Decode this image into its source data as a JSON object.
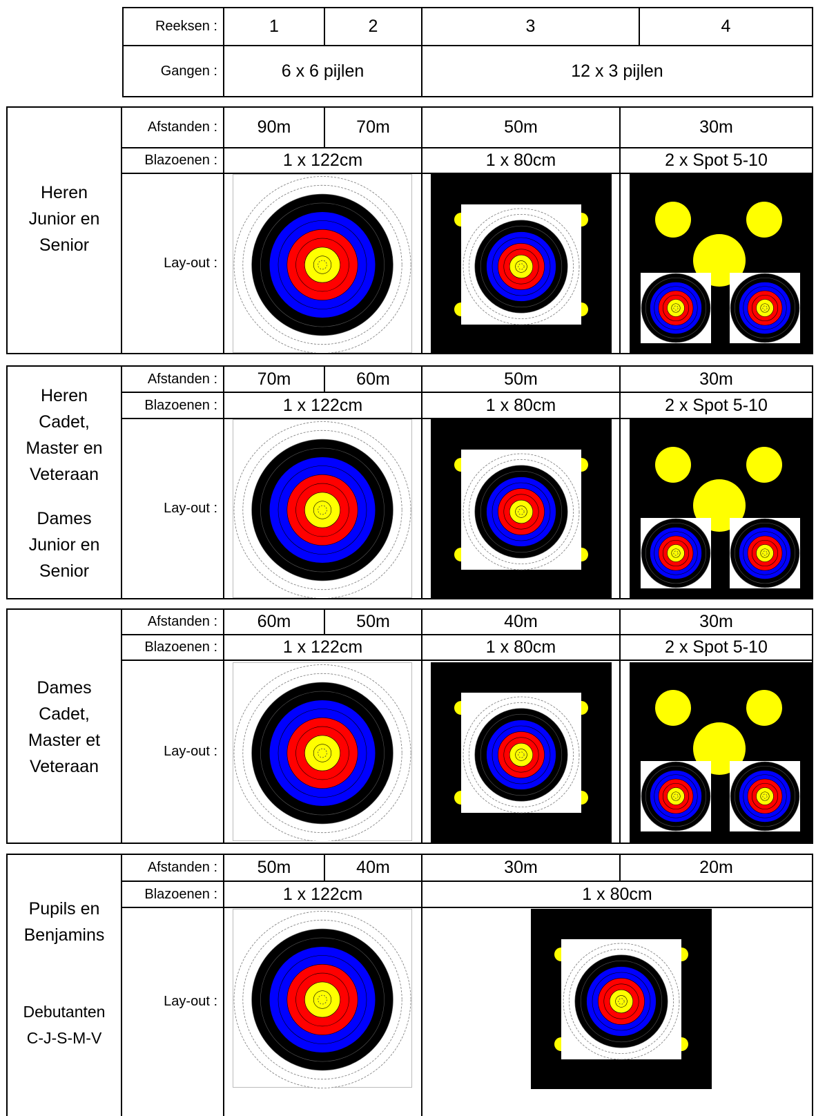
{
  "header": {
    "reeksen_label": "Reeksen :",
    "reeksen": [
      "1",
      "2",
      "3",
      "4"
    ],
    "gangen_label": "Gangen :",
    "gangen": [
      "6 x 6 pijlen",
      "12 x 3 pijlen"
    ]
  },
  "labels": {
    "afstanden": "Afstanden :",
    "blazoenen": "Blazoenen :",
    "layout": "Lay-out :"
  },
  "blocks": [
    {
      "group_lines": [
        "Heren",
        "Junior en",
        "Senior"
      ],
      "group2_lines": [],
      "distances": [
        "90m",
        "70m",
        "50m",
        "30m"
      ],
      "faces": [
        "1 x 122cm",
        "1 x 80cm",
        "2 x Spot 5-10"
      ]
    },
    {
      "group_lines": [
        "Heren",
        "Cadet,",
        "Master en",
        "Veteraan"
      ],
      "group2_lines": [
        "Dames",
        "Junior en",
        "Senior"
      ],
      "distances": [
        "70m",
        "60m",
        "50m",
        "30m"
      ],
      "faces": [
        "1 x 122cm",
        "1 x 80cm",
        "2 x Spot 5-10"
      ]
    },
    {
      "group_lines": [
        "Dames",
        "Cadet,",
        "Master et",
        "Veteraan"
      ],
      "group2_lines": [],
      "distances": [
        "60m",
        "50m",
        "40m",
        "30m"
      ],
      "faces": [
        "1 x 122cm",
        "1 x 80cm",
        "2 x Spot 5-10"
      ]
    },
    {
      "group_lines": [
        "Pupils en",
        "Benjamins"
      ],
      "group2_lines": [
        "Debutanten",
        "C-J-S-M-V"
      ],
      "distances": [
        "50m",
        "40m",
        "30m",
        "20m"
      ],
      "faces": [
        "1 x 122cm",
        "1 x 80cm"
      ]
    }
  ],
  "colors": {
    "ring_white": "#ffffff",
    "ring_black": "#000000",
    "ring_blue": "#0000ff",
    "ring_red": "#ff0000",
    "ring_yellow": "#ffff00"
  }
}
